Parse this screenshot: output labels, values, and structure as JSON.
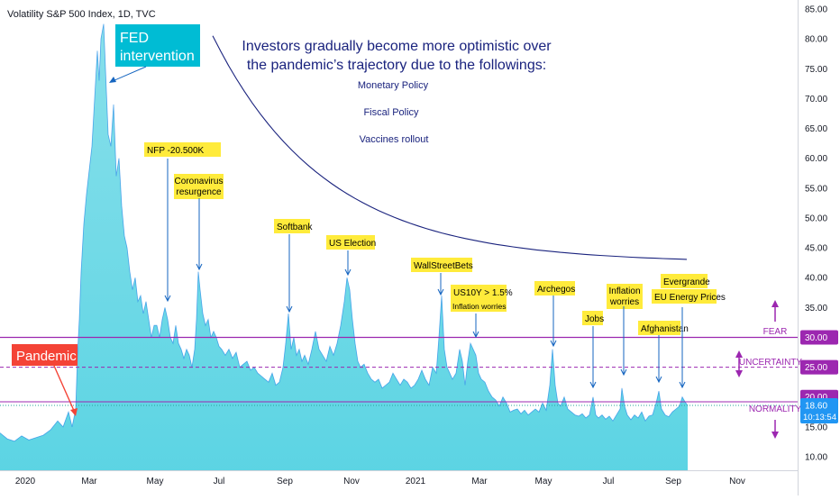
{
  "chart_data": {
    "type": "area",
    "title": "Volatility S&P 500 Index, 1D, TVC",
    "ylim": [
      7,
      87
    ],
    "y_ticks": [
      "85.00",
      "80.00",
      "75.00",
      "70.00",
      "65.00",
      "60.00",
      "55.00",
      "50.00",
      "45.00",
      "40.00",
      "35.00",
      "30.00",
      "25.00",
      "20.00",
      "15.00",
      "10.00"
    ],
    "x_ticks": [
      "2020",
      "Mar",
      "May",
      "Jul",
      "Sep",
      "Nov",
      "2021",
      "Mar",
      "May",
      "Jul",
      "Sep",
      "Nov"
    ],
    "last_price": "18.60",
    "countdown": "10:13:54",
    "series_color": "#26c6da",
    "series": [
      {
        "values": [
          [
            0,
            14
          ],
          [
            8,
            13
          ],
          [
            16,
            12.6
          ],
          [
            24,
            13.5
          ],
          [
            32,
            12.8
          ],
          [
            40,
            13.2
          ],
          [
            48,
            13.6
          ],
          [
            56,
            14.5
          ],
          [
            64,
            16
          ],
          [
            70,
            15
          ],
          [
            76,
            17.5
          ],
          [
            80,
            15
          ],
          [
            84,
            18
          ],
          [
            86,
            27
          ],
          [
            88,
            33
          ],
          [
            90,
            41
          ],
          [
            93,
            49
          ],
          [
            96,
            54
          ],
          [
            99,
            58
          ],
          [
            102,
            62
          ],
          [
            105,
            70
          ],
          [
            108,
            78
          ],
          [
            110,
            73
          ],
          [
            112,
            80
          ],
          [
            115,
            82.5
          ],
          [
            117,
            75
          ],
          [
            120,
            64
          ],
          [
            123,
            62
          ],
          [
            126,
            69
          ],
          [
            129,
            57
          ],
          [
            132,
            60
          ],
          [
            135,
            52
          ],
          [
            138,
            47
          ],
          [
            141,
            45
          ],
          [
            144,
            41
          ],
          [
            147,
            38
          ],
          [
            150,
            40
          ],
          [
            153,
            36
          ],
          [
            156,
            37
          ],
          [
            159,
            34
          ],
          [
            162,
            36
          ],
          [
            165,
            33
          ],
          [
            168,
            30
          ],
          [
            171,
            32
          ],
          [
            174,
            32
          ],
          [
            177,
            30
          ],
          [
            180,
            33
          ],
          [
            183,
            35
          ],
          [
            186,
            33
          ],
          [
            189,
            30
          ],
          [
            192,
            29
          ],
          [
            195,
            32
          ],
          [
            198,
            29
          ],
          [
            201,
            28
          ],
          [
            204,
            26.5
          ],
          [
            207,
            28
          ],
          [
            210,
            27
          ],
          [
            213,
            25
          ],
          [
            216,
            28
          ],
          [
            218,
            33
          ],
          [
            220,
            41
          ],
          [
            222,
            38
          ],
          [
            225,
            34
          ],
          [
            228,
            32
          ],
          [
            231,
            33
          ],
          [
            234,
            30
          ],
          [
            237,
            31
          ],
          [
            240,
            30
          ],
          [
            243,
            28.5
          ],
          [
            246,
            28
          ],
          [
            250,
            27
          ],
          [
            254,
            28
          ],
          [
            258,
            26.5
          ],
          [
            262,
            27.5
          ],
          [
            266,
            25
          ],
          [
            270,
            25.5
          ],
          [
            274,
            26
          ],
          [
            278,
            24.5
          ],
          [
            282,
            25
          ],
          [
            286,
            24
          ],
          [
            290,
            23.5
          ],
          [
            294,
            23
          ],
          [
            298,
            22.5
          ],
          [
            302,
            24
          ],
          [
            306,
            22
          ],
          [
            310,
            22.5
          ],
          [
            314,
            25
          ],
          [
            317,
            29
          ],
          [
            320,
            34
          ],
          [
            323,
            28
          ],
          [
            326,
            30
          ],
          [
            329,
            27
          ],
          [
            332,
            28
          ],
          [
            335,
            26
          ],
          [
            338,
            27
          ],
          [
            342,
            25.5
          ],
          [
            346,
            28
          ],
          [
            350,
            31
          ],
          [
            354,
            28
          ],
          [
            358,
            27
          ],
          [
            362,
            26
          ],
          [
            366,
            28.5
          ],
          [
            370,
            27
          ],
          [
            374,
            29
          ],
          [
            378,
            32
          ],
          [
            382,
            36
          ],
          [
            385,
            40
          ],
          [
            388,
            38
          ],
          [
            391,
            33
          ],
          [
            394,
            29
          ],
          [
            397,
            26
          ],
          [
            400,
            25
          ],
          [
            404,
            25.5
          ],
          [
            408,
            24
          ],
          [
            412,
            23
          ],
          [
            416,
            22.5
          ],
          [
            420,
            23
          ],
          [
            424,
            21.5
          ],
          [
            428,
            22
          ],
          [
            432,
            22.5
          ],
          [
            436,
            24
          ],
          [
            440,
            23
          ],
          [
            444,
            22
          ],
          [
            448,
            23
          ],
          [
            452,
            22.5
          ],
          [
            456,
            21.5
          ],
          [
            460,
            22
          ],
          [
            464,
            23
          ],
          [
            468,
            24.5
          ],
          [
            472,
            23
          ],
          [
            476,
            22
          ],
          [
            480,
            25
          ],
          [
            484,
            24
          ],
          [
            487,
            30
          ],
          [
            490,
            37
          ],
          [
            493,
            28
          ],
          [
            496,
            25
          ],
          [
            499,
            24
          ],
          [
            502,
            23
          ],
          [
            506,
            24
          ],
          [
            510,
            28
          ],
          [
            513,
            26
          ],
          [
            516,
            22
          ],
          [
            519,
            26
          ],
          [
            522,
            29
          ],
          [
            525,
            28
          ],
          [
            528,
            27
          ],
          [
            531,
            24
          ],
          [
            534,
            23
          ],
          [
            538,
            22.5
          ],
          [
            542,
            21
          ],
          [
            546,
            20
          ],
          [
            550,
            19.5
          ],
          [
            554,
            18.5
          ],
          [
            558,
            20
          ],
          [
            562,
            19
          ],
          [
            566,
            17.5
          ],
          [
            570,
            17.8
          ],
          [
            574,
            18
          ],
          [
            578,
            17.2
          ],
          [
            582,
            17.8
          ],
          [
            586,
            17
          ],
          [
            590,
            17.5
          ],
          [
            594,
            18
          ],
          [
            598,
            17.5
          ],
          [
            602,
            19
          ],
          [
            606,
            17.8
          ],
          [
            610,
            22
          ],
          [
            613,
            28
          ],
          [
            616,
            22
          ],
          [
            619,
            19
          ],
          [
            622,
            18.5
          ],
          [
            626,
            20
          ],
          [
            630,
            18
          ],
          [
            634,
            17.5
          ],
          [
            638,
            17
          ],
          [
            642,
            16.8
          ],
          [
            646,
            17.2
          ],
          [
            650,
            16.5
          ],
          [
            654,
            17
          ],
          [
            658,
            20
          ],
          [
            661,
            17
          ],
          [
            664,
            16.5
          ],
          [
            668,
            17
          ],
          [
            672,
            16.3
          ],
          [
            676,
            16.8
          ],
          [
            680,
            16
          ],
          [
            684,
            17
          ],
          [
            688,
            18
          ],
          [
            690,
            21.5
          ],
          [
            693,
            18.5
          ],
          [
            696,
            17
          ],
          [
            700,
            16.2
          ],
          [
            704,
            17
          ],
          [
            708,
            16.5
          ],
          [
            712,
            17.5
          ],
          [
            716,
            16
          ],
          [
            720,
            16.8
          ],
          [
            724,
            17
          ],
          [
            728,
            19
          ],
          [
            731,
            21
          ],
          [
            734,
            18
          ],
          [
            738,
            17
          ],
          [
            742,
            16.7
          ],
          [
            746,
            17.5
          ],
          [
            750,
            18
          ],
          [
            754,
            18.5
          ],
          [
            757,
            20
          ],
          [
            760,
            19.2
          ],
          [
            763,
            18.6
          ]
        ]
      }
    ],
    "annotations": [
      "FED intervention",
      "Pandemic",
      "NFP -20.500K",
      "Coronavirus resurgence",
      "Softbank",
      "US Election",
      "WallStreetBets",
      "US10Y > 1.5%",
      "Inflation worries",
      "Archegos",
      "Jobs",
      "Inflation worries",
      "Afghanistan",
      "Evergrande",
      "EU Energy Prices"
    ],
    "zones": {
      "fear": {
        "label": "FEAR",
        "value": "30.00"
      },
      "uncertainty": {
        "label": "UNCERTAINTY",
        "value": "25.00"
      },
      "normality": {
        "label": "NORMALITY",
        "value": "20.00"
      }
    },
    "headline": [
      "Investors gradually become more optimistic over",
      "the pandemic’s trajectory due to the followings:"
    ],
    "factors": [
      "Monetary Policy",
      "Fiscal Policy",
      "Vaccines rollout"
    ],
    "colors": {
      "accent_purple": "#9c27b0",
      "teal_label": "#00bcd4",
      "red_label": "#f44336",
      "note_yellow": "#ffeb3b",
      "navy": "#1a237e"
    }
  }
}
